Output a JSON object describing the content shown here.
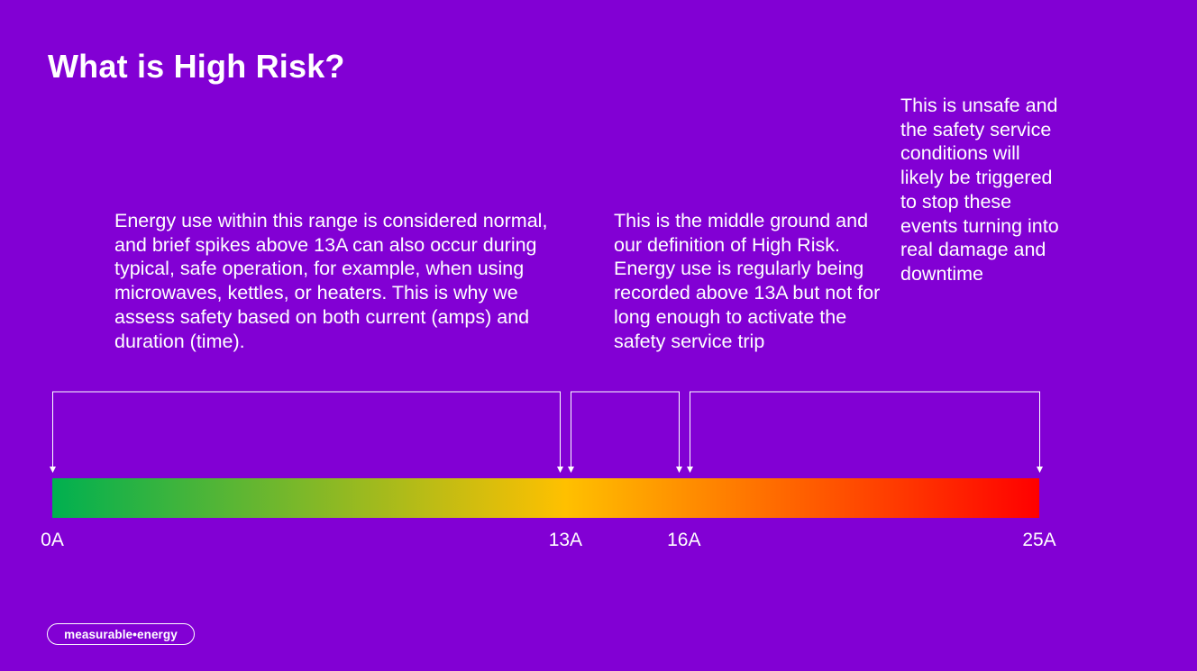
{
  "slide": {
    "title": "What is High Risk?"
  },
  "descriptions": {
    "normal": "Energy use within this range is considered normal, and brief spikes above 13A can also occur during typical, safe operation, for example, when using microwaves, kettles, or heaters. This is why we assess safety based on both current (amps) and duration (time).",
    "high_risk": "This is the middle ground and our definition of High Risk. Energy use is regularly being recorded above 13A but not for long enough to activate the safety service trip",
    "unsafe": "This is unsafe and the safety service conditions will likely be triggered to stop these events turning into real damage and downtime"
  },
  "scale": {
    "max_amps": 25,
    "ticks": [
      {
        "label": "0A",
        "value": 0
      },
      {
        "label": "13A",
        "value": 13
      },
      {
        "label": "16A",
        "value": 16
      },
      {
        "label": "25A",
        "value": 25
      }
    ],
    "ranges": [
      {
        "name": "normal",
        "from": 0,
        "to": 13
      },
      {
        "name": "high-risk",
        "from": 13,
        "to": 16
      },
      {
        "name": "unsafe",
        "from": 16,
        "to": 25
      }
    ],
    "gradient_colors": [
      "#00b050",
      "#ffc000",
      "#ff0000"
    ]
  },
  "logo": {
    "text": "measurable•energy"
  }
}
